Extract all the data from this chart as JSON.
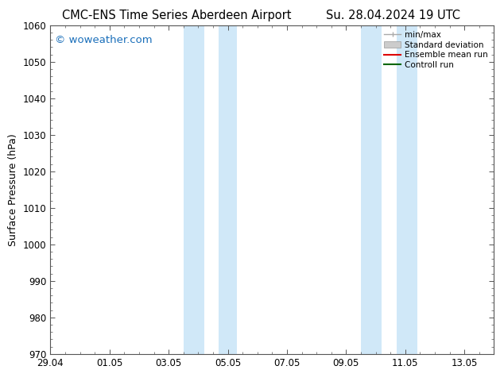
{
  "title_left": "CMC-ENS Time Series Aberdeen Airport",
  "title_right": "Su. 28.04.2024 19 UTC",
  "ylabel": "Surface Pressure (hPa)",
  "ylim": [
    970,
    1060
  ],
  "yticks": [
    970,
    980,
    990,
    1000,
    1010,
    1020,
    1030,
    1040,
    1050,
    1060
  ],
  "xlim": [
    0,
    15
  ],
  "xtick_labels": [
    "29.04",
    "01.05",
    "03.05",
    "05.05",
    "07.05",
    "09.05",
    "11.05",
    "13.05"
  ],
  "xtick_positions": [
    0,
    2,
    4,
    6,
    8,
    10,
    12,
    14
  ],
  "watermark": "© woweather.com",
  "watermark_color": "#1a6fba",
  "shaded_regions": [
    {
      "x_start": 4.5,
      "x_end": 5.2
    },
    {
      "x_start": 5.7,
      "x_end": 6.3
    },
    {
      "x_start": 10.5,
      "x_end": 11.2
    },
    {
      "x_start": 11.7,
      "x_end": 12.4
    }
  ],
  "shade_color": "#d0e8f8",
  "background_color": "#ffffff",
  "plot_bg_color": "#ffffff",
  "legend_items": [
    {
      "label": "min/max",
      "color": "#aaaaaa",
      "style": "errorbar"
    },
    {
      "label": "Standard deviation",
      "color": "#cccccc",
      "style": "rect"
    },
    {
      "label": "Ensemble mean run",
      "color": "#dd0000",
      "style": "line"
    },
    {
      "label": "Controll run",
      "color": "#006600",
      "style": "line"
    }
  ],
  "title_fontsize": 10.5,
  "tick_fontsize": 8.5,
  "ylabel_fontsize": 9,
  "watermark_fontsize": 9.5
}
